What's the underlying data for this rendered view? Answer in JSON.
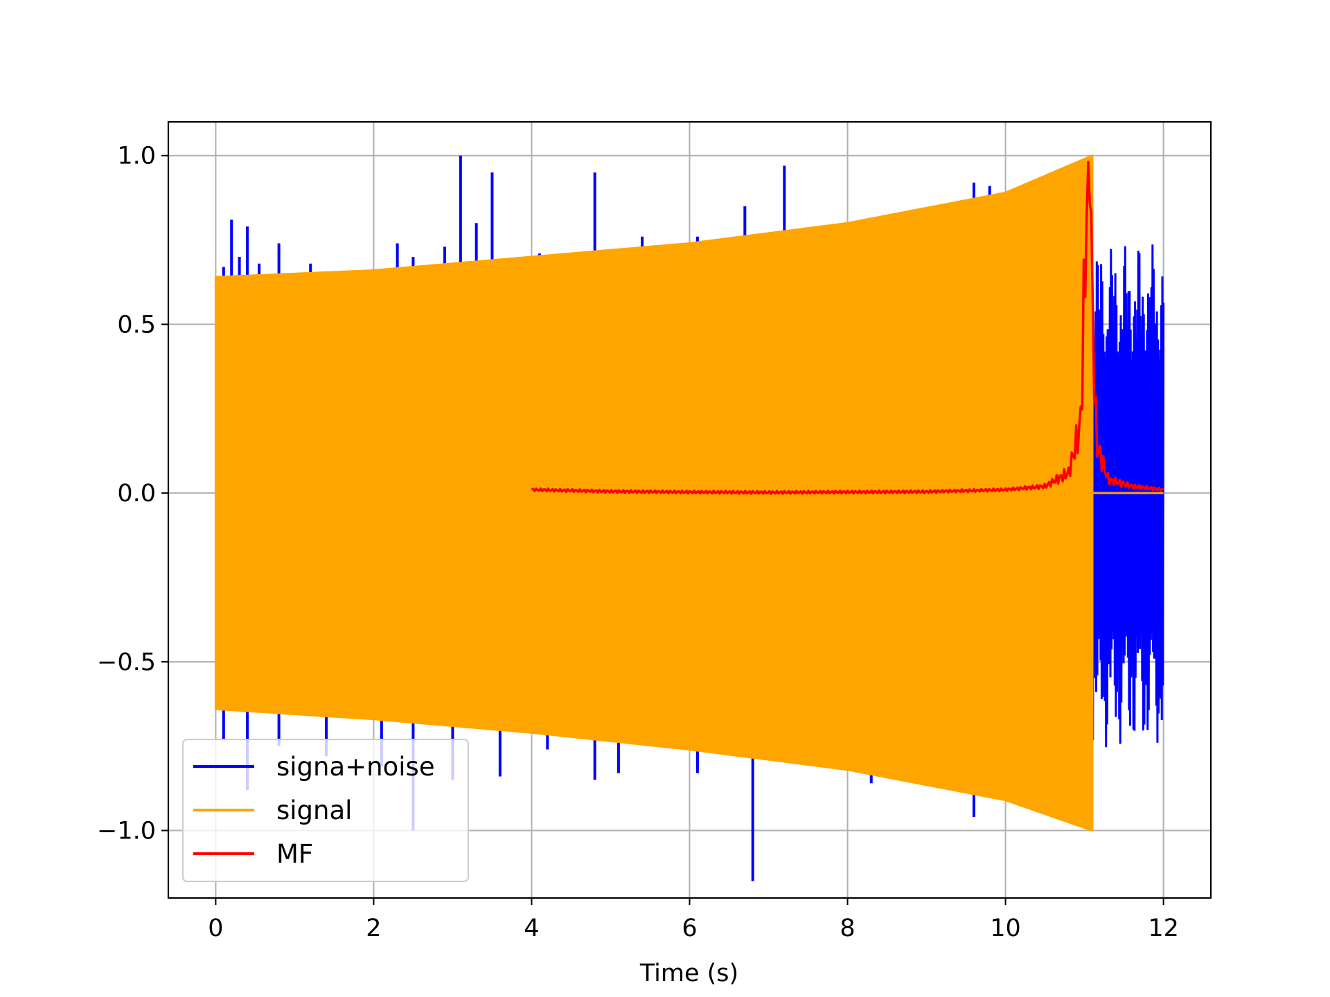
{
  "chart_data": {
    "type": "line",
    "title": "",
    "xlabel": "Time (s)",
    "ylabel": "",
    "xlim": [
      -0.6,
      12.6
    ],
    "ylim": [
      -1.2,
      1.1
    ],
    "x_ticks": [
      0,
      2,
      4,
      6,
      8,
      10,
      12
    ],
    "x_tick_labels": [
      "0",
      "2",
      "4",
      "6",
      "8",
      "10",
      "12"
    ],
    "y_ticks": [
      1.0,
      0.5,
      0.0,
      -0.5,
      -1.0
    ],
    "y_tick_labels": [
      "1.0",
      "0.5",
      "0.0",
      "−0.5",
      "−1.0"
    ],
    "grid": true,
    "legend_position": "lower-left",
    "legend": [
      {
        "label": "signa+noise",
        "color": "#0000ff"
      },
      {
        "label": "signal",
        "color": "#ffa500"
      },
      {
        "label": "MF",
        "color": "#ff0000"
      }
    ],
    "series": [
      {
        "name": "signa+noise",
        "color": "#0000ff",
        "x_range": [
          0,
          12
        ],
        "noise_spikes_upper": [
          [
            0.1,
            0.67
          ],
          [
            0.2,
            0.81
          ],
          [
            0.3,
            0.7
          ],
          [
            0.4,
            0.79
          ],
          [
            0.55,
            0.68
          ],
          [
            0.8,
            0.74
          ],
          [
            1.2,
            0.68
          ],
          [
            2.3,
            0.74
          ],
          [
            2.5,
            0.7
          ],
          [
            2.9,
            0.73
          ],
          [
            3.1,
            1.0
          ],
          [
            3.3,
            0.8
          ],
          [
            3.5,
            0.95
          ],
          [
            4.1,
            0.71
          ],
          [
            4.8,
            0.95
          ],
          [
            5.4,
            0.76
          ],
          [
            6.1,
            0.76
          ],
          [
            6.7,
            0.85
          ],
          [
            7.2,
            0.97
          ],
          [
            9.6,
            0.92
          ],
          [
            9.8,
            0.91
          ],
          [
            10.2,
            0.87
          ]
        ],
        "noise_spikes_lower": [
          [
            0.1,
            -0.73
          ],
          [
            0.4,
            -0.88
          ],
          [
            0.8,
            -0.75
          ],
          [
            1.4,
            -0.78
          ],
          [
            2.1,
            -0.81
          ],
          [
            2.5,
            -1.0
          ],
          [
            3.0,
            -0.85
          ],
          [
            3.6,
            -0.84
          ],
          [
            4.2,
            -0.76
          ],
          [
            4.8,
            -0.85
          ],
          [
            5.1,
            -0.83
          ],
          [
            6.1,
            -0.83
          ],
          [
            6.8,
            -1.15
          ],
          [
            8.3,
            -0.86
          ],
          [
            9.6,
            -0.96
          ]
        ],
        "post_merger_envelope": {
          "x_start": 11.1,
          "x_end": 12.0,
          "max": 0.78,
          "min": -0.8
        }
      },
      {
        "name": "signal",
        "color": "#ffa500",
        "x_range": [
          0,
          11.1
        ],
        "type": "chirp",
        "envelope_upper": [
          [
            0,
            0.64
          ],
          [
            2,
            0.66
          ],
          [
            4,
            0.7
          ],
          [
            6,
            0.74
          ],
          [
            8,
            0.8
          ],
          [
            10,
            0.89
          ],
          [
            11.1,
            1.0
          ]
        ],
        "envelope_lower": [
          [
            0,
            -0.64
          ],
          [
            2,
            -0.67
          ],
          [
            4,
            -0.71
          ],
          [
            6,
            -0.76
          ],
          [
            8,
            -0.82
          ],
          [
            10,
            -0.91
          ],
          [
            11.1,
            -1.0
          ]
        ]
      },
      {
        "name": "MF",
        "color": "#ff0000",
        "x": [
          4.0,
          5.0,
          6.0,
          7.0,
          8.0,
          9.0,
          10.0,
          10.5,
          10.8,
          10.95,
          11.05,
          11.15,
          11.3,
          11.6,
          12.0
        ],
        "y": [
          0.01,
          0.005,
          0.003,
          0.002,
          0.003,
          0.004,
          0.01,
          0.02,
          0.06,
          0.2,
          1.0,
          0.15,
          0.04,
          0.02,
          0.01
        ]
      }
    ]
  }
}
